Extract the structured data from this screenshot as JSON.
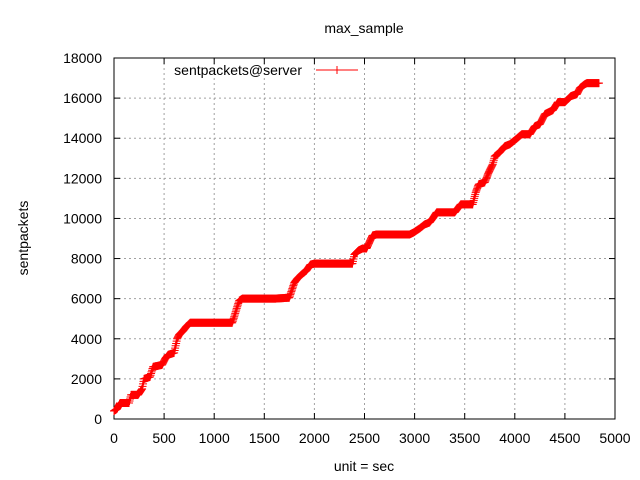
{
  "chart_data": {
    "type": "line",
    "title": "max_sample",
    "xlabel": "unit = sec",
    "ylabel": "sentpackets",
    "xlim": [
      0,
      5000
    ],
    "ylim": [
      0,
      18000
    ],
    "xticks": [
      0,
      500,
      1000,
      1500,
      2000,
      2500,
      3000,
      3500,
      4000,
      4500,
      5000
    ],
    "yticks": [
      0,
      2000,
      4000,
      6000,
      8000,
      10000,
      12000,
      14000,
      16000,
      18000
    ],
    "grid": true,
    "legend": "top-left",
    "series": [
      {
        "name": "sentpackets@server",
        "color": "#ff0000",
        "marker": "plus",
        "x": [
          0,
          30,
          60,
          150,
          170,
          240,
          280,
          300,
          360,
          390,
          480,
          510,
          540,
          600,
          630,
          650,
          690,
          720,
          760,
          840,
          950,
          1100,
          1180,
          1200,
          1230,
          1250,
          1280,
          1400,
          1600,
          1750,
          1780,
          1800,
          1830,
          1870,
          1920,
          1960,
          2000,
          2100,
          2250,
          2380,
          2400,
          2440,
          2480,
          2520,
          2580,
          2620,
          2750,
          2950,
          2990,
          3050,
          3100,
          3150,
          3180,
          3220,
          3250,
          3400,
          3460,
          3500,
          3580,
          3610,
          3640,
          3700,
          3740,
          3780,
          3800,
          3850,
          3900,
          3950,
          4000,
          4070,
          4150,
          4200,
          4250,
          4300,
          4380,
          4430,
          4500,
          4560,
          4620,
          4650,
          4700,
          4720,
          4840
        ],
        "y": [
          400,
          500,
          800,
          800,
          1200,
          1200,
          1500,
          2000,
          2100,
          2600,
          2700,
          3000,
          3200,
          3300,
          4000,
          4200,
          4400,
          4600,
          4800,
          4800,
          4800,
          4800,
          4800,
          5100,
          5600,
          5900,
          6000,
          6000,
          6000,
          6050,
          6500,
          6800,
          7000,
          7200,
          7400,
          7700,
          7750,
          7750,
          7750,
          7750,
          8200,
          8400,
          8500,
          8500,
          9150,
          9200,
          9200,
          9200,
          9300,
          9500,
          9700,
          9800,
          10000,
          10300,
          10300,
          10300,
          10700,
          10700,
          10700,
          11300,
          11700,
          11800,
          12300,
          12700,
          13100,
          13300,
          13600,
          13700,
          13900,
          14200,
          14200,
          14600,
          14700,
          15200,
          15400,
          15800,
          15800,
          16100,
          16200,
          16500,
          16700,
          16750,
          16750
        ]
      }
    ]
  }
}
